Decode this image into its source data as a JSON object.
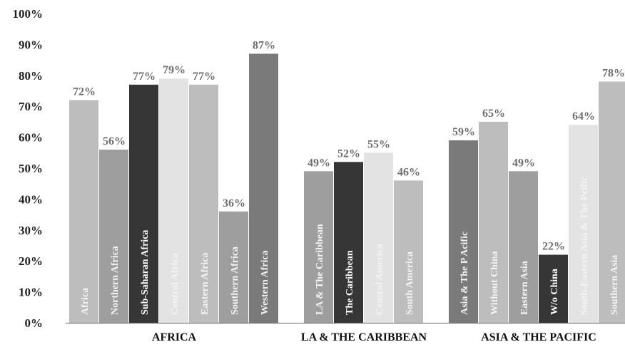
{
  "chart_data": {
    "type": "bar",
    "title": "",
    "xlabel": "",
    "ylabel": "",
    "ylim": [
      0,
      100
    ],
    "y_ticks": [
      "0%",
      "10%",
      "20%",
      "30%",
      "40%",
      "50%",
      "60%",
      "70%",
      "80%",
      "90%",
      "100%"
    ],
    "grid": false,
    "legend": "none",
    "groups": [
      {
        "name": "AFRICA",
        "bars": [
          {
            "label": "Africa",
            "value": 72,
            "value_label": "72%",
            "color": "#bdbdbd"
          },
          {
            "label": "Northern Africa",
            "value": 56,
            "value_label": "56%",
            "color": "#9e9e9e"
          },
          {
            "label": "Sub-Saharan Africa",
            "value": 77,
            "value_label": "77%",
            "color": "#363636"
          },
          {
            "label": "Central Africa",
            "value": 79,
            "value_label": "79%",
            "color": "#e3e3e3"
          },
          {
            "label": "Eastern Africa",
            "value": 77,
            "value_label": "77%",
            "color": "#bdbdbd"
          },
          {
            "label": "Southern Africa",
            "value": 36,
            "value_label": "36%",
            "color": "#9e9e9e"
          },
          {
            "label": "Western Africa",
            "value": 87,
            "value_label": "87%",
            "color": "#7a7a7a"
          }
        ]
      },
      {
        "name": "LA & THE CARIBBEAN",
        "bars": [
          {
            "label": "LA & The Caribbean",
            "value": 49,
            "value_label": "49%",
            "color": "#9e9e9e"
          },
          {
            "label": "The Caribbean",
            "value": 52,
            "value_label": "52%",
            "color": "#363636"
          },
          {
            "label": "Central America",
            "value": 55,
            "value_label": "55%",
            "color": "#e3e3e3"
          },
          {
            "label": "South America",
            "value": 46,
            "value_label": "46%",
            "color": "#bdbdbd"
          }
        ]
      },
      {
        "name": "ASIA & THE PACIFIC",
        "bars": [
          {
            "label": "Asia & The P Acific",
            "value": 59,
            "value_label": "59%",
            "color": "#7a7a7a"
          },
          {
            "label": "Without China",
            "value": 65,
            "value_label": "65%",
            "color": "#bdbdbd"
          },
          {
            "label": "Eastern Asia",
            "value": 49,
            "value_label": "49%",
            "color": "#9e9e9e"
          },
          {
            "label": "W/o China",
            "value": 22,
            "value_label": "22%",
            "color": "#363636"
          },
          {
            "label": "South-Eastern Asia & The Pcific",
            "value": 64,
            "value_label": "64%",
            "color": "#e3e3e3"
          },
          {
            "label": "Southern Asia",
            "value": 78,
            "value_label": "78%",
            "color": "#bdbdbd"
          }
        ]
      }
    ]
  }
}
